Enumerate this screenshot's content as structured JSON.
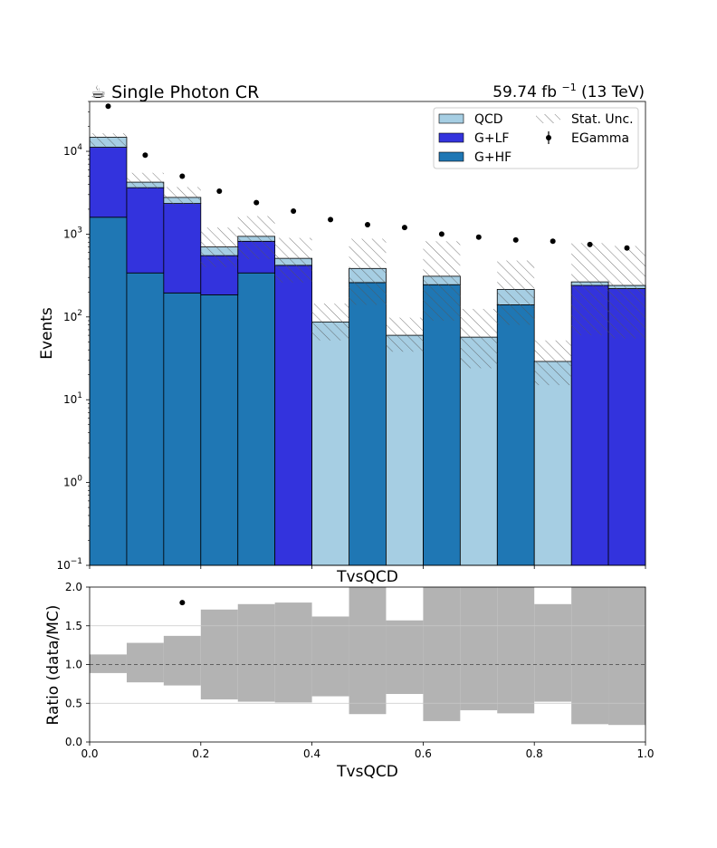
{
  "chart_data": [
    {
      "type": "bar",
      "stacked": true,
      "title_left": "☕ Single Photon CR",
      "title_right": "59.74 fb",
      "title_right_sup": "−1",
      "title_right_suffix": " (13 TeV)",
      "xlabel": "TvsQCD",
      "ylabel": "Events",
      "yscale": "log",
      "xlim": [
        0.0,
        1.0
      ],
      "ylim": [
        0.1,
        40000
      ],
      "bin_edges": [
        0.0,
        0.0667,
        0.1333,
        0.2,
        0.2667,
        0.3333,
        0.4,
        0.4667,
        0.5333,
        0.6,
        0.6667,
        0.7333,
        0.8,
        0.8667,
        0.9333,
        1.0
      ],
      "y_ticks": [
        {
          "value": 0.1,
          "base": "10",
          "exp": "−1"
        },
        {
          "value": 1,
          "base": "10",
          "exp": "0"
        },
        {
          "value": 10,
          "base": "10",
          "exp": "1"
        },
        {
          "value": 100,
          "base": "10",
          "exp": "2"
        },
        {
          "value": 1000,
          "base": "10",
          "exp": "3"
        },
        {
          "value": 10000,
          "base": "10",
          "exp": "4"
        }
      ],
      "x_ticks": [
        {
          "value": 0.0,
          "label": "0.0"
        },
        {
          "value": 0.2,
          "label": "0.2"
        },
        {
          "value": 0.4,
          "label": "0.4"
        },
        {
          "value": 0.6,
          "label": "0.6"
        },
        {
          "value": 0.8,
          "label": "0.8"
        },
        {
          "value": 1.0,
          "label": "1.0"
        }
      ],
      "series": [
        {
          "name": "G+HF",
          "color": "#1f77b4",
          "values": [
            1600,
            340,
            195,
            185,
            340,
            0,
            0,
            260,
            0,
            245,
            0,
            140,
            0,
            0,
            0
          ]
        },
        {
          "name": "G+LF",
          "color": "#3333dd",
          "values": [
            9600,
            3300,
            2150,
            365,
            480,
            420,
            0,
            0,
            0,
            0,
            0,
            0,
            0,
            240,
            220
          ]
        },
        {
          "name": "QCD",
          "color": "#a6cee3",
          "values": [
            3600,
            600,
            430,
            150,
            120,
            90,
            87,
            125,
            60,
            65,
            57,
            75,
            29,
            25,
            20
          ]
        }
      ],
      "stat_unc": {
        "name": "Stat. Unc.",
        "down": [
          11500,
          3500,
          2200,
          400,
          500,
          260,
          52,
          140,
          38,
          90,
          24,
          80,
          15,
          60,
          55
        ],
        "up": [
          16500,
          5500,
          3700,
          1200,
          1650,
          900,
          145,
          880,
          98,
          820,
          125,
          480,
          52,
          780,
          720
        ]
      },
      "data": {
        "name": "EGamma",
        "values": [
          35000,
          9000,
          5000,
          3300,
          2400,
          1900,
          1500,
          1300,
          1200,
          1000,
          920,
          850,
          820,
          750,
          680
        ]
      },
      "legend": [
        "QCD",
        "G+LF",
        "G+HF",
        "Stat. Unc.",
        "EGamma"
      ],
      "legend_position": "top-right"
    },
    {
      "type": "bar",
      "title": "TvsQCD",
      "xlabel": "TvsQCD",
      "ylabel": "Ratio (data/MC)",
      "xlim": [
        0.0,
        1.0
      ],
      "ylim": [
        0.0,
        2.0
      ],
      "grid": true,
      "reference_line": 1.0,
      "y_ticks": [
        {
          "value": 0.0,
          "label": "0.0"
        },
        {
          "value": 0.5,
          "label": "0.5"
        },
        {
          "value": 1.0,
          "label": "1.0"
        },
        {
          "value": 1.5,
          "label": "1.5"
        },
        {
          "value": 2.0,
          "label": "2.0"
        }
      ],
      "x_ticks": [
        {
          "value": 0.0,
          "label": "0.0"
        },
        {
          "value": 0.2,
          "label": "0.2"
        },
        {
          "value": 0.4,
          "label": "0.4"
        },
        {
          "value": 0.6,
          "label": "0.6"
        },
        {
          "value": 0.8,
          "label": "0.8"
        },
        {
          "value": 1.0,
          "label": "1.0"
        }
      ],
      "band_color": "#b3b3b3",
      "unc_band_low": [
        0.89,
        0.77,
        0.73,
        0.55,
        0.52,
        0.51,
        0.59,
        0.36,
        0.62,
        0.27,
        0.41,
        0.37,
        0.52,
        0.23,
        0.22
      ],
      "unc_band_high": [
        1.13,
        1.28,
        1.37,
        1.71,
        1.78,
        1.8,
        1.62,
        2.05,
        1.57,
        2.05,
        2.05,
        2.05,
        1.78,
        2.05,
        2.05
      ],
      "ratio_points": [
        {
          "x": 0.1667,
          "y": 1.8
        }
      ]
    }
  ]
}
